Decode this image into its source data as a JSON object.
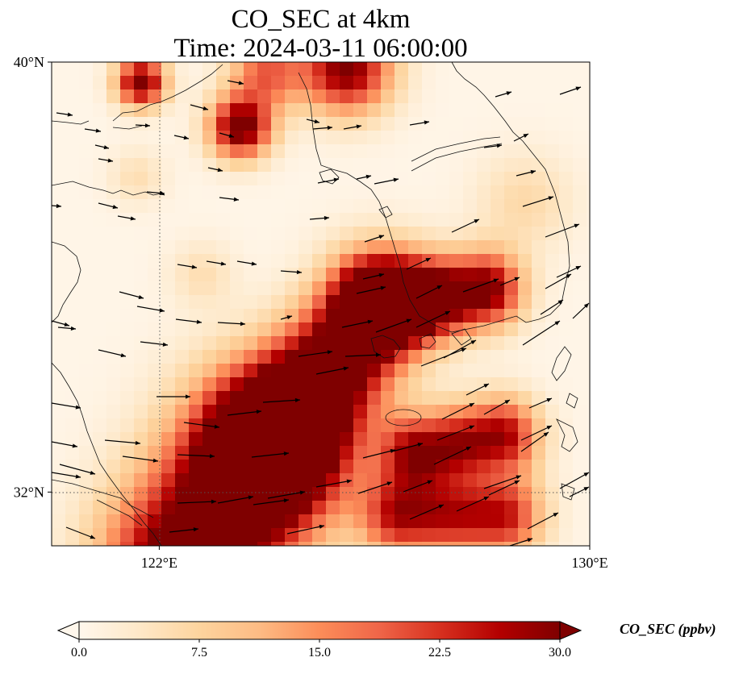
{
  "title": {
    "line1": "CO_SEC at 4km",
    "line2": "Time: 2024-03-11 06:00:00"
  },
  "map": {
    "extent": {
      "lon": [
        120,
        130
      ],
      "lat": [
        31,
        40
      ]
    },
    "lat_ticks": [
      {
        "value": 32,
        "label": "32°N"
      },
      {
        "value": 40,
        "label": "40°N"
      }
    ],
    "lon_ticks": [
      {
        "value": 122,
        "label": "122°E"
      },
      {
        "value": 130,
        "label": "130°E"
      }
    ],
    "gridlines": "dotted",
    "field": "CO_SEC",
    "wind_vectors": true,
    "coastlines": true
  },
  "colorbar": {
    "label": "CO_SEC (ppbv)",
    "min": 0,
    "max": 30,
    "ticks": [
      {
        "value": 0,
        "label": "0.0"
      },
      {
        "value": 7.5,
        "label": "7.5"
      },
      {
        "value": 15,
        "label": "15.0"
      },
      {
        "value": 22.5,
        "label": "22.5"
      },
      {
        "value": 30,
        "label": "30.0"
      }
    ],
    "extend": "both",
    "colormap": "OrRd",
    "colors": [
      "#fff7ec",
      "#fee8c8",
      "#fdd49e",
      "#fdbb84",
      "#fc8d59",
      "#ef6548",
      "#d7301f",
      "#b30000",
      "#7f0000"
    ]
  }
}
